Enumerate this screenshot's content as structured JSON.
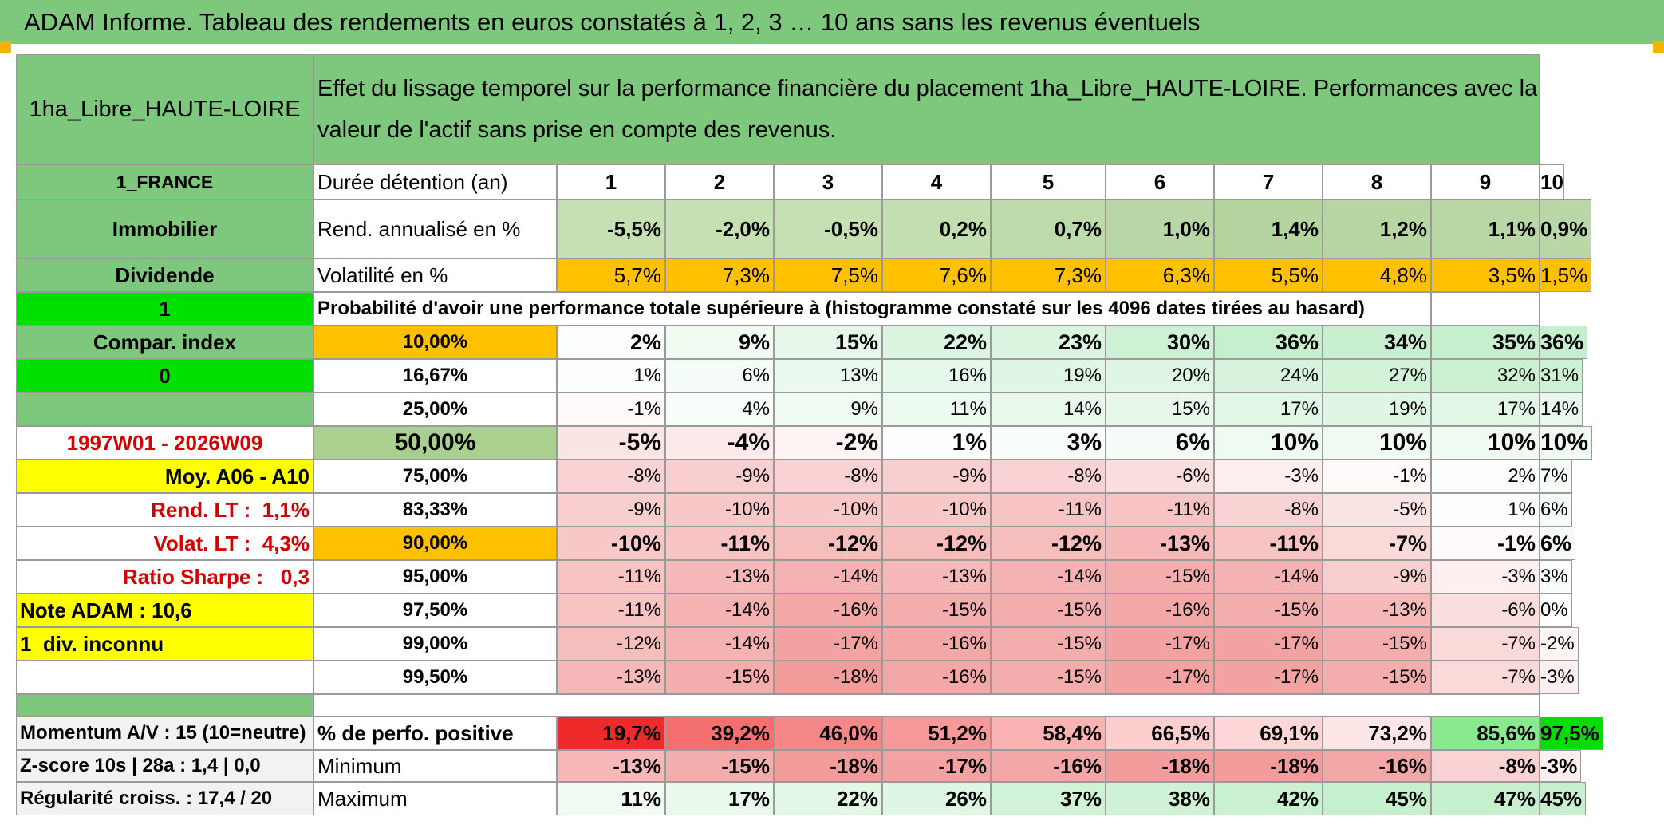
{
  "title": "ADAM Informe. Tableau des rendements en euros constatés à 1, 2, 3 … 10 ans sans les revenus éventuels",
  "header": {
    "product": "1ha_Libre_HAUTE-LOIRE",
    "description": "Effet du lissage temporel sur la performance financière du placement 1ha_Libre_HAUTE-LOIRE. Performances avec la valeur de l'actif sans prise en compte des revenus."
  },
  "side": {
    "country": "1_FRANCE",
    "category": "Immobilier",
    "dividend": "Dividende",
    "flag1": "1",
    "compar_index": "Compar. index",
    "flag0": "0",
    "period": "1997W01 - 2026W09",
    "moy": "Moy. A06 - A10",
    "rend_lt_label": "Rend. LT :",
    "rend_lt_value": "1,1%",
    "volat_lt_label": "Volat. LT :",
    "volat_lt_value": "4,3%",
    "sharpe_label": "Ratio Sharpe :",
    "sharpe_value": "0,3",
    "note": "Note ADAM : 10,6",
    "div_unknown": "1_div. inconnu",
    "momentum": "Momentum A/V : 15 (10=neutre)",
    "zscore": "Z-score 10s | 28a : 1,4 | 0,0",
    "regularite": "Régularité croiss. : 17,4 / 20"
  },
  "table": {
    "duration_label": "Durée détention (an)",
    "years": [
      "1",
      "2",
      "3",
      "4",
      "5",
      "6",
      "7",
      "8",
      "9",
      "10"
    ],
    "rend_label": "Rend. annualisé en %",
    "rend": [
      "-5,5%",
      "-2,0%",
      "-0,5%",
      "0,2%",
      "0,7%",
      "1,0%",
      "1,4%",
      "1,2%",
      "1,1%",
      "0,9%"
    ],
    "vol_label": "Volatilité en %",
    "vol": [
      "5,7%",
      "7,3%",
      "7,5%",
      "7,6%",
      "7,3%",
      "6,3%",
      "5,5%",
      "4,8%",
      "3,5%",
      "1,5%"
    ],
    "prob_title": "Probabilité d'avoir une performance totale supérieure à (histogramme constaté sur les 4096 dates tirées au hasard)",
    "quantiles": [
      {
        "label": "10,00%",
        "values": [
          "2%",
          "9%",
          "15%",
          "22%",
          "23%",
          "30%",
          "36%",
          "34%",
          "35%",
          "36%"
        ]
      },
      {
        "label": "16,67%",
        "values": [
          "1%",
          "6%",
          "13%",
          "16%",
          "19%",
          "20%",
          "24%",
          "27%",
          "32%",
          "31%"
        ]
      },
      {
        "label": "25,00%",
        "values": [
          "-1%",
          "4%",
          "9%",
          "11%",
          "14%",
          "15%",
          "17%",
          "19%",
          "17%",
          "14%"
        ]
      },
      {
        "label": "50,00%",
        "values": [
          "-5%",
          "-4%",
          "-2%",
          "1%",
          "3%",
          "6%",
          "10%",
          "10%",
          "10%",
          "10%"
        ]
      },
      {
        "label": "75,00%",
        "values": [
          "-8%",
          "-9%",
          "-8%",
          "-9%",
          "-8%",
          "-6%",
          "-3%",
          "-1%",
          "2%",
          "7%"
        ]
      },
      {
        "label": "83,33%",
        "values": [
          "-9%",
          "-10%",
          "-10%",
          "-10%",
          "-11%",
          "-11%",
          "-8%",
          "-5%",
          "1%",
          "6%"
        ]
      },
      {
        "label": "90,00%",
        "values": [
          "-10%",
          "-11%",
          "-12%",
          "-12%",
          "-12%",
          "-13%",
          "-11%",
          "-7%",
          "-1%",
          "6%"
        ]
      },
      {
        "label": "95,00%",
        "values": [
          "-11%",
          "-13%",
          "-14%",
          "-13%",
          "-14%",
          "-15%",
          "-14%",
          "-9%",
          "-3%",
          "3%"
        ]
      },
      {
        "label": "97,50%",
        "values": [
          "-11%",
          "-14%",
          "-16%",
          "-15%",
          "-15%",
          "-16%",
          "-15%",
          "-13%",
          "-6%",
          "0%"
        ]
      },
      {
        "label": "99,00%",
        "values": [
          "-12%",
          "-14%",
          "-17%",
          "-16%",
          "-15%",
          "-17%",
          "-17%",
          "-15%",
          "-7%",
          "-2%"
        ]
      },
      {
        "label": "99,50%",
        "values": [
          "-13%",
          "-15%",
          "-18%",
          "-16%",
          "-15%",
          "-17%",
          "-17%",
          "-15%",
          "-7%",
          "-3%"
        ]
      }
    ],
    "pos_label": "% de perfo. positive",
    "pos": [
      "19,7%",
      "39,2%",
      "46,0%",
      "51,2%",
      "58,4%",
      "66,5%",
      "69,1%",
      "73,2%",
      "85,6%",
      "97,5%"
    ],
    "min_label": "Minimum",
    "min": [
      "-13%",
      "-15%",
      "-18%",
      "-17%",
      "-16%",
      "-18%",
      "-18%",
      "-16%",
      "-8%",
      "-3%"
    ],
    "max_label": "Maximum",
    "max": [
      "11%",
      "17%",
      "22%",
      "26%",
      "37%",
      "38%",
      "42%",
      "45%",
      "47%",
      "45%"
    ]
  },
  "colors": {
    "header_green": "#7ec87e",
    "bright_green": "#00e000",
    "yellow": "#ffff00",
    "orange": "#ffc000",
    "pale_green": "#c6e0b4",
    "alert_red": "#d60000"
  }
}
